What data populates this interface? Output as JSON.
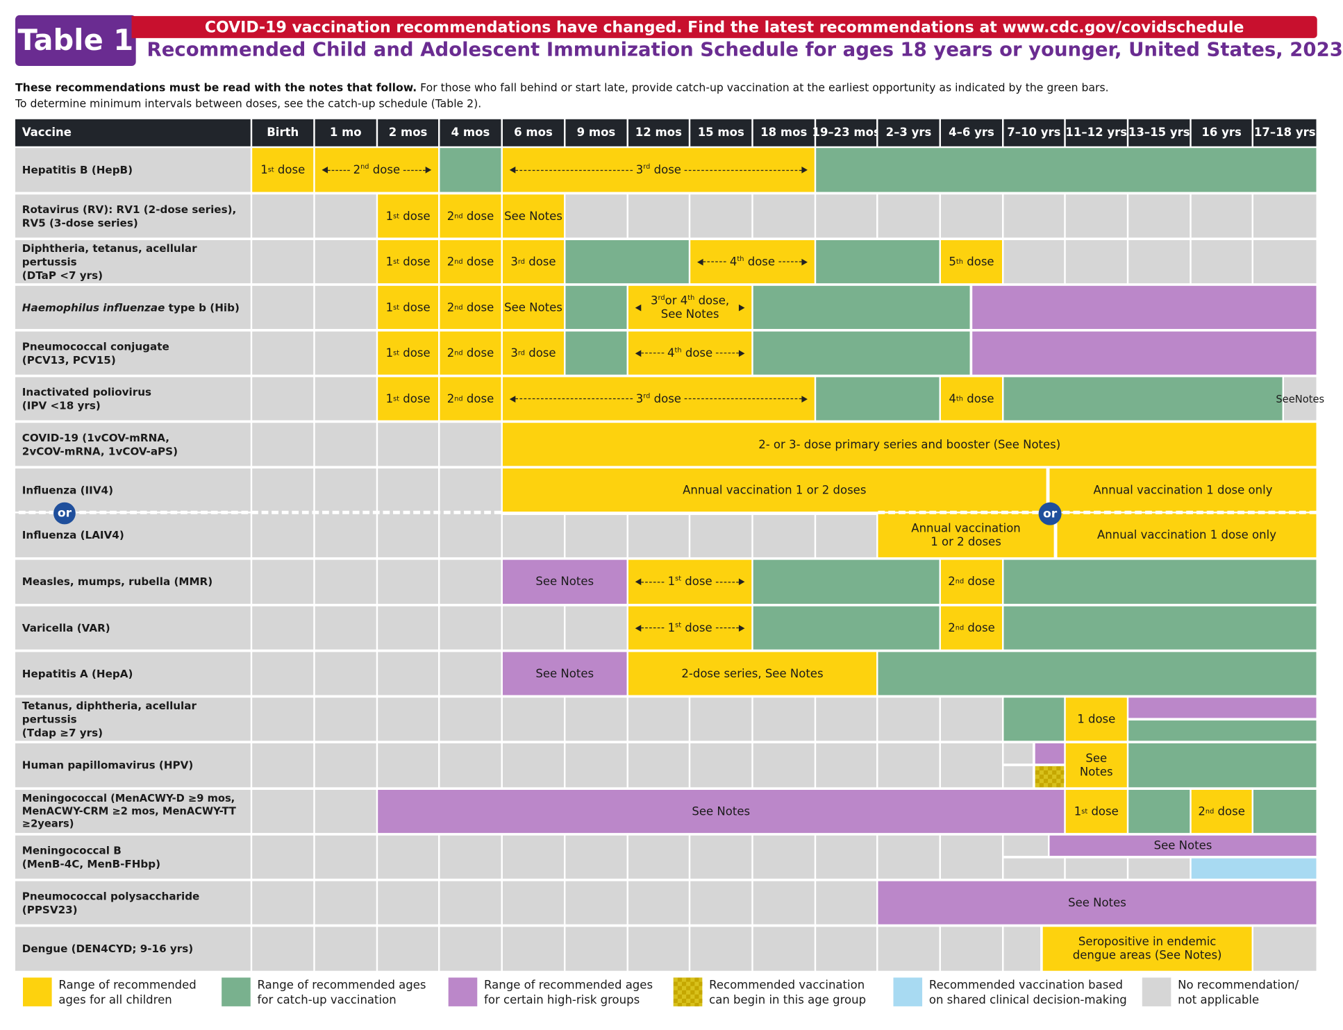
{
  "header": {
    "badge": "Table 1",
    "banner": "COVID-19 vaccination recommendations have changed. Find the latest recommendations at www.cdc.gov/covidschedule",
    "title": "Recommended Child and Adolescent Immunization Schedule for ages 18 years or younger, United States, 2023",
    "intro_bold": "These recommendations must be read with the notes that follow.",
    "intro_rest": " For those who fall behind or start late, provide catch-up vaccination at the earliest opportunity as indicated by the green bars.",
    "intro_line2": "To determine minimum intervals between doses, see the catch-up schedule (Table 2)."
  },
  "columns": [
    "Vaccine",
    "Birth",
    "1 mo",
    "2 mos",
    "4 mos",
    "6 mos",
    "9 mos",
    "12 mos",
    "15 mos",
    "18 mos",
    "19–23 mos",
    "2–3 yrs",
    "4–6 yrs",
    "7–10 yrs",
    "11–12 yrs",
    "13–15 yrs",
    "16 yrs",
    "17–18 yrs"
  ],
  "vaccines": {
    "hepb": "Hepatitis B (HepB)",
    "rv_1": "Rotavirus (RV): RV1 (2-dose series),",
    "rv_2": "RV5 (3-dose series)",
    "dtap_1": "Diphtheria, tetanus, acellular pertussis",
    "dtap_2": "(DTaP <7 yrs)",
    "hib_italic": "Haemophilus influenzae",
    "hib_rest": " type b (Hib)",
    "pcv_1": "Pneumococcal conjugate",
    "pcv_2": "(PCV13, PCV15)",
    "ipv_1": "Inactivated poliovirus",
    "ipv_2": "(IPV <18 yrs)",
    "covid_1": "COVID-19 (1vCOV-mRNA,",
    "covid_2": "2vCOV-mRNA, 1vCOV-aPS)",
    "iiv4": "Influenza (IIV4)",
    "laiv4": "Influenza (LAIV4)",
    "mmr": "Measles, mumps, rubella (MMR)",
    "var": "Varicella (VAR)",
    "hepa": "Hepatitis A (HepA)",
    "tdap_1": "Tetanus, diphtheria, acellular pertussis",
    "tdap_2": "(Tdap ≥7 yrs)",
    "hpv": "Human papillomavirus (HPV)",
    "menacwy_1": "Meningococcal (MenACWY-D ≥9 mos,",
    "menacwy_2": "MenACWY-CRM ≥2 mos,  MenACWY-TT",
    "menacwy_3": "≥2years)",
    "menb_1": "Meningococcal B",
    "menb_2": "(MenB-4C, MenB-FHbp)",
    "ppsv_1": "Pneumococcal polysaccharide",
    "ppsv_2": "(PPSV23)",
    "dengue": "Dengue (DEN4CYD; 9-16 yrs)"
  },
  "labels": {
    "dose": "dose",
    "st": "st",
    "nd": "nd",
    "rd": "rd",
    "th": "th",
    "n1": "1",
    "n2": "2",
    "n3": "3",
    "n4": "4",
    "n5": "5",
    "see_notes": "See Notes",
    "see": "See",
    "notes": "Notes",
    "or": "or",
    "one_dose": "1 dose",
    "hib_34_a": "or 4",
    "hib_34_b": " dose,",
    "covid_text": "2- or 3- dose primary series and booster (See Notes)",
    "iiv4_a": "Annual vaccination 1 or 2 doses",
    "iiv4_b": "Annual vaccination 1 dose only",
    "laiv4_a1": "Annual vaccination",
    "laiv4_a2": "1 or 2 doses",
    "laiv4_b": "Annual vaccination 1 dose only",
    "hepa_series": "2-dose series, See Notes",
    "dengue_1": "Seropositive in endemic",
    "dengue_2": "dengue areas (See Notes)"
  },
  "legend": [
    {
      "l1": "Range of recommended",
      "l2": "ages for all children",
      "color": "#fdd20e"
    },
    {
      "l1": "Range of recommended ages",
      "l2": "for catch-up vaccination",
      "color": "#79b18e"
    },
    {
      "l1": "Range of recommended ages",
      "l2": "for certain high-risk groups",
      "color": "#bb87c9"
    },
    {
      "l1": "Recommended vaccination",
      "l2": "can begin in this age group",
      "color": "#d8c11c"
    },
    {
      "l1": "Recommended vaccination based",
      "l2": "on shared clinical decision-making",
      "color": "#a8daf2"
    },
    {
      "l1": "No recommendation/",
      "l2": "not applicable",
      "color": "#d6d6d6"
    }
  ],
  "colors": {
    "yellow": "#fdd20e",
    "green": "#79b18e",
    "purple": "#bb87c9",
    "blue": "#a8daf2",
    "gray": "#d6d6d6",
    "header": "#21252b",
    "title_purple": "#6a2c91",
    "banner_red": "#c8102e"
  }
}
